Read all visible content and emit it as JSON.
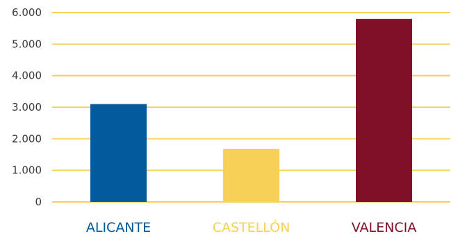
{
  "chart_data": {
    "type": "bar",
    "title": "",
    "xlabel": "",
    "ylabel": "",
    "categories": [
      "ALICANTE",
      "CASTELLÓN",
      "VALENCIA"
    ],
    "values": [
      3100,
      1680,
      5800
    ],
    "bar_colors": [
      "#005a9c",
      "#f6d155",
      "#801129"
    ],
    "label_colors": [
      "#005a9c",
      "#f6d155",
      "#801129"
    ],
    "grid_color": "#f6d155",
    "ylim": [
      0,
      6000
    ],
    "yticks": [
      0,
      1000,
      2000,
      3000,
      4000,
      5000,
      6000
    ],
    "ytick_labels": [
      "0",
      "1.000",
      "2.000",
      "3.000",
      "4.000",
      "5.000",
      "6.000"
    ],
    "grid": true,
    "legend": "none"
  }
}
